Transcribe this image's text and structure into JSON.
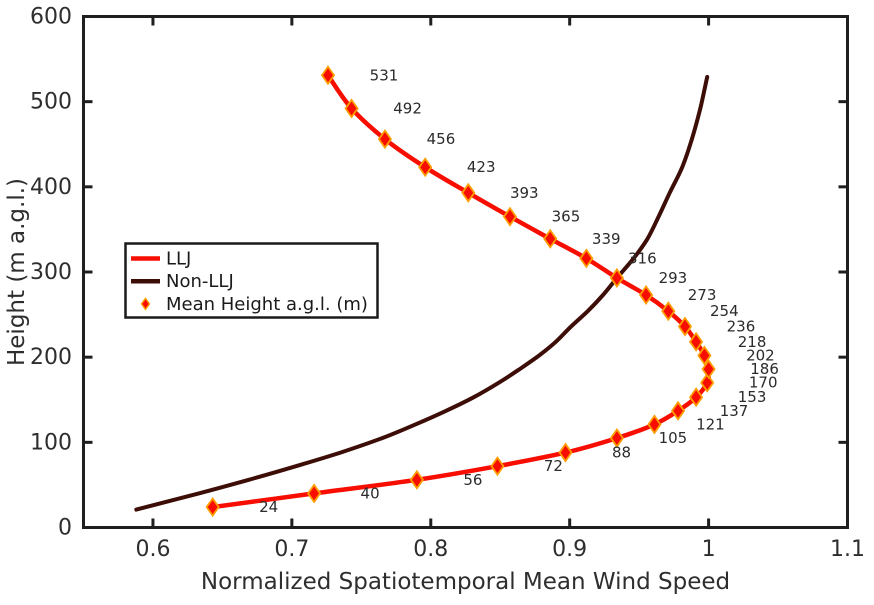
{
  "figure": {
    "background": "#ffffff",
    "axis_color": "#1f1f1f",
    "tick_label_color": "#2e2e2e",
    "annotation_color": "#2b2b2b"
  },
  "legend": {
    "items": [
      {
        "label": "LLJ",
        "swatch": "line",
        "color": "#f70e00"
      },
      {
        "label": "Non-LLJ",
        "swatch": "line",
        "color": "#3d0e07"
      },
      {
        "label": "Mean Height a.g.l. (m)",
        "swatch": "diamond",
        "color": "#f70e00",
        "edge": "#ff9d00"
      }
    ]
  },
  "chart_data": {
    "type": "line",
    "title": "",
    "xlabel": "Normalized Spatiotemporal Mean Wind Speed",
    "ylabel": "Height (m a.g.l.)",
    "xlim": [
      0.55,
      1.1
    ],
    "ylim": [
      0,
      600
    ],
    "grid": false,
    "legend_position": "left-center",
    "xticks": {
      "values": [
        0.6,
        0.7,
        0.8,
        0.9,
        1,
        1.1
      ],
      "labels": [
        "0.6",
        "0.7",
        "0.8",
        "0.9",
        "1",
        "1.1"
      ]
    },
    "yticks": {
      "values": [
        0,
        100,
        200,
        300,
        400,
        500,
        600
      ],
      "labels": [
        "0",
        "100",
        "200",
        "300",
        "400",
        "500",
        "600"
      ]
    },
    "series": [
      {
        "name": "Non-LLJ",
        "color": "#3d0e07",
        "line_width": 4,
        "markers": false,
        "points": [
          [
            0.588,
            21
          ],
          [
            0.633,
            40
          ],
          [
            0.669,
            56
          ],
          [
            0.703,
            72
          ],
          [
            0.735,
            88
          ],
          [
            0.765,
            105
          ],
          [
            0.789,
            121
          ],
          [
            0.811,
            137
          ],
          [
            0.831,
            153
          ],
          [
            0.849,
            170
          ],
          [
            0.864,
            186
          ],
          [
            0.878,
            202
          ],
          [
            0.89,
            218
          ],
          [
            0.901,
            236
          ],
          [
            0.913,
            254
          ],
          [
            0.924,
            273
          ],
          [
            0.934,
            293
          ],
          [
            0.946,
            316
          ],
          [
            0.956,
            339
          ],
          [
            0.964,
            365
          ],
          [
            0.972,
            393
          ],
          [
            0.981,
            423
          ],
          [
            0.988,
            456
          ],
          [
            0.994,
            492
          ],
          [
            0.999,
            529
          ]
        ]
      },
      {
        "name": "LLJ",
        "color": "#f70e00",
        "line_width": 4.5,
        "markers": {
          "shape": "diamond",
          "face": "#f70e00",
          "edge": "#ff9d00"
        },
        "point_labels": "height",
        "points": [
          [
            0.643,
            24
          ],
          [
            0.716,
            40
          ],
          [
            0.79,
            56
          ],
          [
            0.848,
            72
          ],
          [
            0.897,
            88
          ],
          [
            0.934,
            105
          ],
          [
            0.961,
            121
          ],
          [
            0.978,
            137
          ],
          [
            0.991,
            153
          ],
          [
            0.999,
            170
          ],
          [
            1.0,
            186
          ],
          [
            0.997,
            202
          ],
          [
            0.991,
            218
          ],
          [
            0.983,
            236
          ],
          [
            0.971,
            254
          ],
          [
            0.955,
            273
          ],
          [
            0.934,
            293
          ],
          [
            0.912,
            316
          ],
          [
            0.886,
            339
          ],
          [
            0.857,
            365
          ],
          [
            0.827,
            393
          ],
          [
            0.796,
            423
          ],
          [
            0.767,
            456
          ],
          [
            0.743,
            492
          ],
          [
            0.726,
            531
          ]
        ]
      }
    ]
  }
}
